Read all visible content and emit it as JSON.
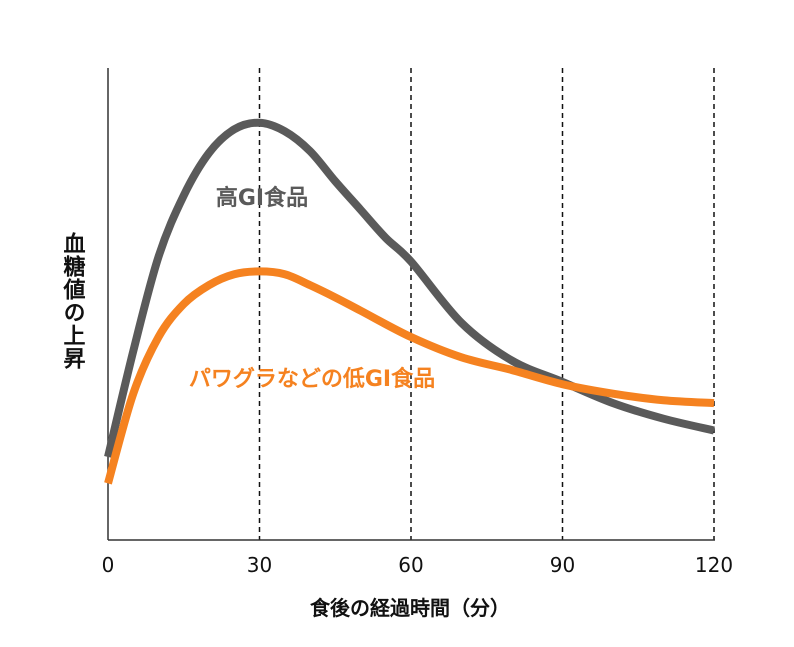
{
  "chart_data": {
    "type": "line",
    "title": "",
    "xlabel": "食後の経過時間（分）",
    "ylabel": "血糖値の上昇",
    "xlim": [
      0,
      120
    ],
    "ylim": [
      0,
      100
    ],
    "xticks": [
      "0",
      "30",
      "60",
      "90",
      "120"
    ],
    "xtick_values": [
      0,
      30,
      60,
      90,
      120
    ],
    "gridlines_x": [
      30,
      60,
      90,
      120
    ],
    "grid_style": "dashed vertical",
    "series": [
      {
        "name": "高GI食品",
        "color": "#5a5a5a",
        "x": [
          0,
          5,
          10,
          15,
          20,
          25,
          30,
          35,
          40,
          45,
          50,
          55,
          60,
          70,
          80,
          90,
          100,
          110,
          120
        ],
        "y": [
          17.6,
          40,
          60,
          73,
          82,
          87,
          88.4,
          86.6,
          82.4,
          76,
          70,
          64,
          59,
          46,
          38,
          33.5,
          29,
          25.7,
          23.2
        ]
      },
      {
        "name": "パワグラなどの低GI食品",
        "color": "#f58220",
        "x": [
          0,
          5,
          10,
          15,
          20,
          25,
          30,
          35,
          40,
          45,
          50,
          60,
          70,
          80,
          90,
          100,
          110,
          120
        ],
        "y": [
          12,
          31,
          43,
          50,
          54,
          56.3,
          56.9,
          56.3,
          54,
          51.4,
          48.6,
          43,
          38.7,
          36,
          33,
          31,
          29.6,
          29
        ]
      }
    ]
  }
}
